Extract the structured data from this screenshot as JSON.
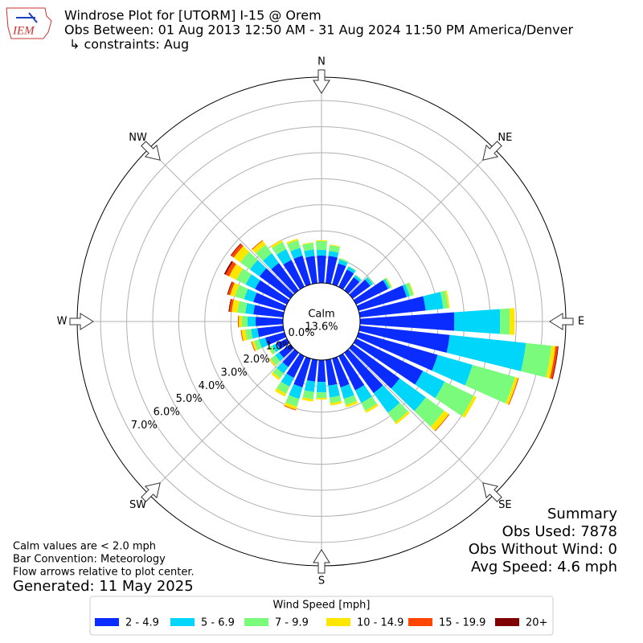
{
  "header": {
    "logo": "IEM",
    "title_lines": [
      "Windrose Plot for [UTORM] I-15 @ Orem",
      "Obs Between: 01 Aug 2013 12:50 AM - 31 Aug 2024 11:50 PM America/Denver",
      "↳ constraints: Aug"
    ]
  },
  "chart_data": {
    "type": "windrose",
    "x": [
      0,
      10,
      20,
      30,
      40,
      50,
      60,
      70,
      80,
      90,
      100,
      110,
      120,
      130,
      140,
      150,
      160,
      170,
      180,
      190,
      200,
      210,
      220,
      230,
      240,
      250,
      260,
      270,
      280,
      290,
      300,
      310,
      320,
      330,
      340,
      350
    ],
    "xticks": [
      {
        "value": 0,
        "label": "N"
      },
      {
        "value": 45,
        "label": "NE"
      },
      {
        "value": 90,
        "label": "E"
      },
      {
        "value": 135,
        "label": "SE"
      },
      {
        "value": 180,
        "label": "S"
      },
      {
        "value": 225,
        "label": "SW"
      },
      {
        "value": 270,
        "label": "W"
      },
      {
        "value": 315,
        "label": "NW"
      }
    ],
    "rlim": [
      0,
      7.9
    ],
    "rticks": [
      {
        "value": 0,
        "label": "0.0%"
      },
      {
        "value": 1,
        "label": "1.0%"
      },
      {
        "value": 2,
        "label": "2.0%"
      },
      {
        "value": 3,
        "label": "3.0%"
      },
      {
        "value": 4,
        "label": "4.0%"
      },
      {
        "value": 5,
        "label": "5.0%"
      },
      {
        "value": 6,
        "label": "6.0%"
      },
      {
        "value": 7,
        "label": "7.0%"
      }
    ],
    "calm_label": "Calm",
    "calm": "13.6%",
    "legend_title": "Wind Speed [mph]",
    "series": [
      {
        "name": "2 - 4.9",
        "color": "#0b2cff",
        "values": [
          1.05,
          1.05,
          0.84,
          0.74,
          0.62,
          0.84,
          1.36,
          1.92,
          2.54,
          3.62,
          3.47,
          3.16,
          2.85,
          2.23,
          1.92,
          1.46,
          1.15,
          0.99,
          0.84,
          0.84,
          1.15,
          0.93,
          0.68,
          0.53,
          0.43,
          0.77,
          0.99,
          1.05,
          1.15,
          1.24,
          1.36,
          1.46,
          1.3,
          1.15,
          1.15,
          1.05
        ]
      },
      {
        "name": "5 - 6.9",
        "color": "#00d5fa",
        "values": [
          0.22,
          0.19,
          0.15,
          0.12,
          0.1,
          0.12,
          0.09,
          0.12,
          0.68,
          1.76,
          2.94,
          1.39,
          0.93,
          1.24,
          0.93,
          0.53,
          0.46,
          0.46,
          0.4,
          0.4,
          0.46,
          0.37,
          0.31,
          0.19,
          0.19,
          0.25,
          0.25,
          0.31,
          0.31,
          0.37,
          0.4,
          0.46,
          0.46,
          0.46,
          0.31,
          0.25
        ]
      },
      {
        "name": "7 - 9.9",
        "color": "#7bfb7b",
        "values": [
          0.34,
          0.22,
          0.06,
          0.03,
          0.03,
          0.03,
          0.06,
          0.15,
          0.19,
          0.37,
          0.99,
          1.7,
          1.24,
          0.87,
          0.46,
          0.34,
          0.25,
          0.22,
          0.22,
          0.28,
          0.31,
          0.31,
          0.22,
          0.22,
          0.15,
          0.19,
          0.22,
          0.22,
          0.31,
          0.37,
          0.4,
          0.46,
          0.4,
          0.31,
          0.31,
          0.25
        ]
      },
      {
        "name": "10 - 14.9",
        "color": "#ffe600",
        "values": [
          0.03,
          0.03,
          0,
          0,
          0,
          0,
          0.03,
          0.03,
          0.06,
          0.19,
          0.15,
          0.12,
          0.12,
          0.22,
          0.09,
          0.09,
          0.09,
          0.09,
          0.06,
          0.09,
          0.12,
          0.12,
          0.09,
          0.06,
          0.03,
          0.09,
          0.15,
          0.12,
          0.22,
          0.19,
          0.31,
          0.31,
          0.19,
          0.09,
          0.06,
          0.03
        ]
      },
      {
        "name": "15 - 19.9",
        "color": "#ff4500",
        "values": [
          0,
          0,
          0,
          0,
          0,
          0,
          0,
          0,
          0,
          0,
          0.09,
          0.03,
          0,
          0.03,
          0,
          0,
          0,
          0,
          0,
          0,
          0.03,
          0,
          0,
          0,
          0,
          0.03,
          0.03,
          0.03,
          0.09,
          0.09,
          0.15,
          0.12,
          0.03,
          0,
          0,
          0
        ]
      },
      {
        "name": "20+",
        "color": "#800000",
        "values": [
          0,
          0,
          0,
          0,
          0,
          0,
          0,
          0,
          0,
          0,
          0.03,
          0,
          0,
          0,
          0,
          0,
          0,
          0,
          0,
          0,
          0,
          0,
          0,
          0,
          0,
          0,
          0,
          0,
          0.03,
          0.03,
          0.06,
          0.03,
          0,
          0,
          0,
          0
        ]
      }
    ]
  },
  "notes": [
    "Calm values are < 2.0 mph",
    "Bar Convention: Meteorology",
    "Flow arrows relative to plot center."
  ],
  "generated": "Generated: 11 May 2025",
  "summary": [
    "Summary",
    "Obs Used: 7878",
    "Obs Without Wind: 0",
    "Avg Speed: 4.6 mph"
  ]
}
